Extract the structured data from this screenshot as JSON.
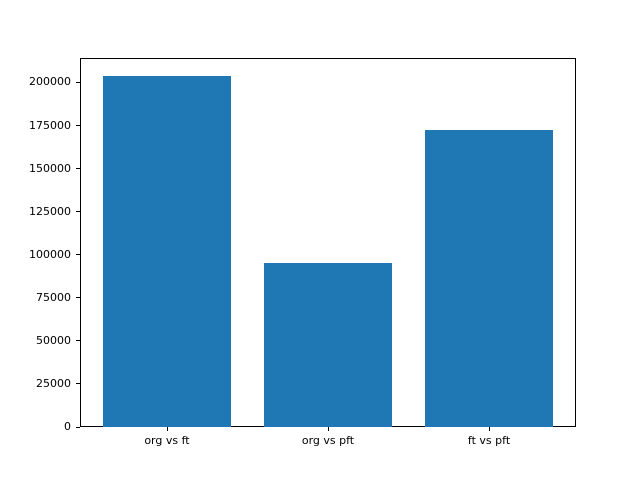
{
  "chart_data": {
    "type": "bar",
    "title": "",
    "xlabel": "",
    "ylabel": "",
    "categories": [
      "org vs ft",
      "org vs pft",
      "ft vs pft"
    ],
    "values": [
      204000,
      95000,
      172500
    ],
    "yticks": [
      0,
      25000,
      50000,
      75000,
      100000,
      125000,
      150000,
      175000,
      200000
    ],
    "ylim": [
      0,
      214200
    ],
    "xlim": [
      -0.54,
      2.54
    ],
    "bar_width": 0.8,
    "bar_color": "#1f77b4",
    "background_color": "#ffffff",
    "axis_color": "#000000",
    "grid": "off",
    "legend": "none"
  }
}
